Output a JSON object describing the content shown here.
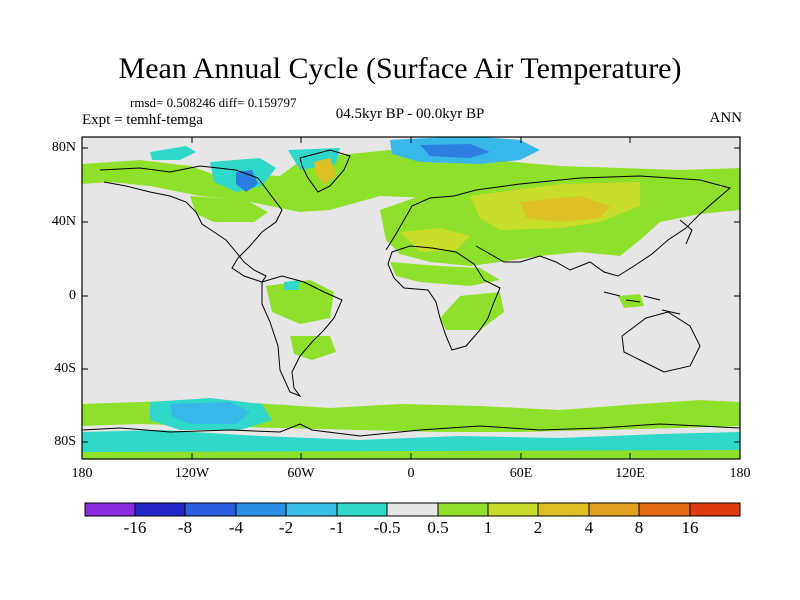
{
  "title": "Mean Annual Cycle (Surface Air Temperature)",
  "stats": "rmsd= 0.508246  diff= 0.159797",
  "experiment": "Expt = temhf-temga",
  "period": "04.5kyr BP - 00.0kyr BP",
  "season": "ANN",
  "colors": {
    "ocean": "#e6e6e6",
    "coast": "#000000",
    "green": "#8fe02a",
    "yellowgreen": "#c8dc2a",
    "olive": "#dcc024",
    "cyan": "#2fd8c8",
    "lightblue": "#38b8e8",
    "blue": "#2c7ee0"
  },
  "axes": {
    "lon_ticks": [
      "180",
      "120W",
      "60W",
      "0",
      "60E",
      "120E",
      "180"
    ],
    "lat_ticks": [
      "80N",
      "40N",
      "0",
      "40S",
      "80S"
    ]
  },
  "colorbar": {
    "labels": [
      "-16",
      "-8",
      "-4",
      "-2",
      "-1",
      "-0.5",
      "0.5",
      "1",
      "2",
      "4",
      "8",
      "16"
    ],
    "colors": [
      "#8a2be2",
      "#2626c8",
      "#2a5ee0",
      "#2a90e6",
      "#3ac0e8",
      "#2fd8c8",
      "#e6e6e6",
      "#8fe02a",
      "#c8dc2a",
      "#dcc024",
      "#e0a020",
      "#e06a14",
      "#e03a10"
    ]
  }
}
